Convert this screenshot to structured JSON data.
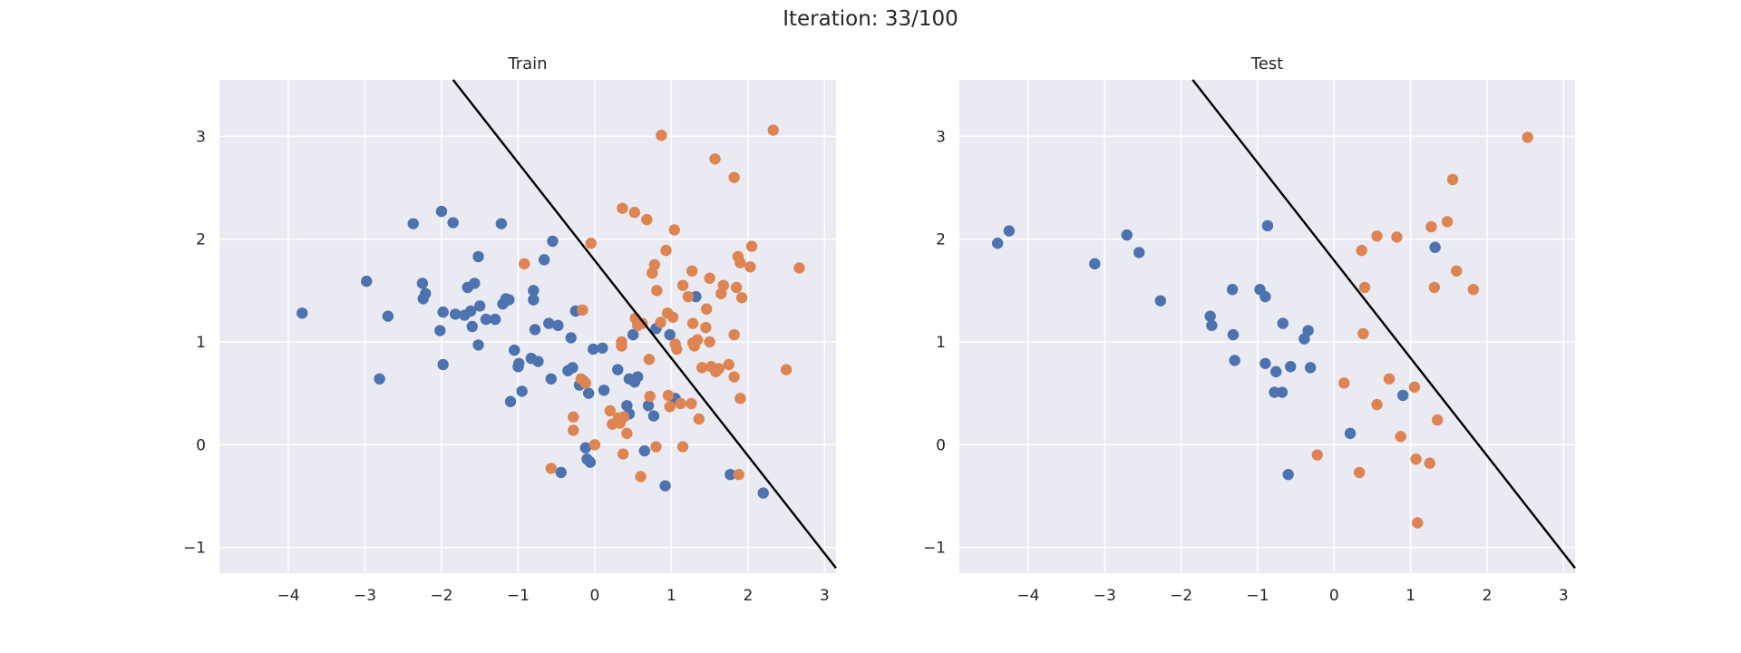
{
  "figure": {
    "title": "Iteration: 33/100"
  },
  "colors": {
    "class0": "#4c72b0",
    "class1": "#dd8452",
    "boundary": "#000000",
    "panel_bg": "#eaeaf2",
    "grid": "#ffffff"
  },
  "chart_data": [
    {
      "type": "scatter",
      "title": "Train",
      "xlim": [
        -4.9,
        3.15
      ],
      "ylim": [
        -1.25,
        3.55
      ],
      "xticks": [
        -4,
        -3,
        -2,
        -1,
        0,
        1,
        2,
        3
      ],
      "yticks": [
        -1,
        0,
        1,
        2,
        3
      ],
      "xlabel": "",
      "ylabel": "",
      "grid": true,
      "boundary": {
        "x": [
          -1.85,
          3.15
        ],
        "y": [
          3.55,
          -1.2
        ]
      },
      "series": [
        {
          "class": 0,
          "points": [
            [
              -3.82,
              1.28
            ],
            [
              -2.98,
              1.59
            ],
            [
              -2.81,
              0.64
            ],
            [
              -2.7,
              1.25
            ],
            [
              -2.37,
              2.15
            ],
            [
              -2.25,
              1.57
            ],
            [
              -2.24,
              1.42
            ],
            [
              -2.21,
              1.47
            ],
            [
              -2.02,
              1.11
            ],
            [
              -2.0,
              2.27
            ],
            [
              -1.98,
              0.78
            ],
            [
              -1.98,
              1.29
            ],
            [
              -1.85,
              2.16
            ],
            [
              -1.82,
              1.27
            ],
            [
              -1.7,
              1.26
            ],
            [
              -1.66,
              1.53
            ],
            [
              -1.62,
              1.3
            ],
            [
              -1.6,
              1.15
            ],
            [
              -1.57,
              1.57
            ],
            [
              -1.52,
              1.83
            ],
            [
              -1.52,
              0.97
            ],
            [
              -1.5,
              1.35
            ],
            [
              -1.42,
              1.22
            ],
            [
              -1.3,
              1.22
            ],
            [
              -1.22,
              2.15
            ],
            [
              -1.2,
              1.37
            ],
            [
              -1.16,
              1.42
            ],
            [
              -1.12,
              1.41
            ],
            [
              -1.1,
              0.42
            ],
            [
              -1.05,
              0.92
            ],
            [
              -1.0,
              0.76
            ],
            [
              -0.99,
              0.79
            ],
            [
              -0.95,
              0.52
            ],
            [
              -0.83,
              0.84
            ],
            [
              -0.8,
              1.5
            ],
            [
              -0.8,
              1.41
            ],
            [
              -0.78,
              1.12
            ],
            [
              -0.74,
              0.81
            ],
            [
              -0.66,
              1.8
            ],
            [
              -0.6,
              1.18
            ],
            [
              -0.57,
              0.64
            ],
            [
              -0.55,
              1.98
            ],
            [
              -0.48,
              1.16
            ],
            [
              -0.44,
              -0.27
            ],
            [
              -0.35,
              0.72
            ],
            [
              -0.31,
              1.04
            ],
            [
              -0.29,
              0.75
            ],
            [
              -0.25,
              1.3
            ],
            [
              -0.2,
              0.58
            ],
            [
              -0.15,
              0.62
            ],
            [
              -0.12,
              -0.03
            ],
            [
              -0.1,
              -0.14
            ],
            [
              -0.08,
              0.5
            ],
            [
              -0.06,
              -0.17
            ],
            [
              -0.02,
              0.93
            ],
            [
              0.1,
              0.94
            ],
            [
              0.12,
              0.53
            ],
            [
              0.3,
              0.73
            ],
            [
              0.42,
              0.38
            ],
            [
              0.45,
              0.64
            ],
            [
              0.45,
              0.3
            ],
            [
              0.5,
              1.07
            ],
            [
              0.52,
              0.61
            ],
            [
              0.56,
              0.66
            ],
            [
              0.65,
              -0.06
            ],
            [
              0.7,
              0.38
            ],
            [
              0.77,
              0.28
            ],
            [
              0.8,
              1.13
            ],
            [
              0.92,
              -0.4
            ],
            [
              0.98,
              1.07
            ],
            [
              1.05,
              0.45
            ],
            [
              1.32,
              1.44
            ],
            [
              1.77,
              -0.29
            ],
            [
              2.2,
              -0.47
            ]
          ]
        },
        {
          "class": 1,
          "points": [
            [
              -0.92,
              1.76
            ],
            [
              -0.28,
              0.27
            ],
            [
              -0.28,
              0.14
            ],
            [
              -0.16,
              1.31
            ],
            [
              -0.18,
              0.64
            ],
            [
              -0.12,
              0.6
            ],
            [
              -0.05,
              1.96
            ],
            [
              0.0,
              0.0
            ],
            [
              -0.57,
              -0.23
            ],
            [
              0.2,
              0.33
            ],
            [
              0.23,
              0.2
            ],
            [
              0.31,
              0.26
            ],
            [
              0.33,
              0.21
            ],
            [
              0.35,
              1.0
            ],
            [
              0.35,
              0.96
            ],
            [
              0.36,
              2.3
            ],
            [
              0.37,
              -0.09
            ],
            [
              0.38,
              0.27
            ],
            [
              0.42,
              0.11
            ],
            [
              0.52,
              2.26
            ],
            [
              0.53,
              1.23
            ],
            [
              0.56,
              1.16
            ],
            [
              0.6,
              -0.31
            ],
            [
              0.62,
              1.18
            ],
            [
              0.68,
              2.19
            ],
            [
              0.71,
              0.83
            ],
            [
              0.72,
              0.47
            ],
            [
              0.75,
              1.67
            ],
            [
              0.78,
              1.75
            ],
            [
              0.8,
              -0.02
            ],
            [
              0.81,
              1.5
            ],
            [
              0.86,
              1.19
            ],
            [
              0.87,
              3.01
            ],
            [
              0.93,
              1.89
            ],
            [
              0.95,
              1.28
            ],
            [
              0.96,
              0.48
            ],
            [
              0.98,
              0.37
            ],
            [
              1.02,
              1.24
            ],
            [
              1.04,
              2.09
            ],
            [
              1.05,
              0.98
            ],
            [
              1.07,
              0.93
            ],
            [
              1.12,
              0.4
            ],
            [
              1.15,
              -0.02
            ],
            [
              1.15,
              1.55
            ],
            [
              1.22,
              1.44
            ],
            [
              1.26,
              0.4
            ],
            [
              1.27,
              1.69
            ],
            [
              1.28,
              0.99
            ],
            [
              1.28,
              1.18
            ],
            [
              1.3,
              0.96
            ],
            [
              1.34,
              1.02
            ],
            [
              1.36,
              0.25
            ],
            [
              1.4,
              0.75
            ],
            [
              1.45,
              1.14
            ],
            [
              1.46,
              1.32
            ],
            [
              1.5,
              1.62
            ],
            [
              1.5,
              1.0
            ],
            [
              1.52,
              0.76
            ],
            [
              1.57,
              2.78
            ],
            [
              1.58,
              0.71
            ],
            [
              1.62,
              0.74
            ],
            [
              1.65,
              1.47
            ],
            [
              1.68,
              1.55
            ],
            [
              1.75,
              0.78
            ],
            [
              1.82,
              2.6
            ],
            [
              1.82,
              1.07
            ],
            [
              1.82,
              0.66
            ],
            [
              1.85,
              1.53
            ],
            [
              1.87,
              1.83
            ],
            [
              1.88,
              -0.29
            ],
            [
              1.9,
              0.45
            ],
            [
              1.9,
              1.77
            ],
            [
              1.92,
              1.43
            ],
            [
              2.03,
              1.73
            ],
            [
              2.05,
              1.93
            ],
            [
              2.33,
              3.06
            ],
            [
              2.5,
              0.73
            ],
            [
              2.67,
              1.72
            ]
          ]
        }
      ]
    },
    {
      "type": "scatter",
      "title": "Test",
      "xlim": [
        -4.9,
        3.15
      ],
      "ylim": [
        -1.25,
        3.55
      ],
      "xticks": [
        -4,
        -3,
        -2,
        -1,
        0,
        1,
        2,
        3
      ],
      "yticks": [
        -1,
        0,
        1,
        2,
        3
      ],
      "xlabel": "",
      "ylabel": "",
      "grid": true,
      "boundary": {
        "x": [
          -1.85,
          3.15
        ],
        "y": [
          3.55,
          -1.2
        ]
      },
      "series": [
        {
          "class": 0,
          "points": [
            [
              -4.4,
              1.96
            ],
            [
              -4.25,
              2.08
            ],
            [
              -3.13,
              1.76
            ],
            [
              -2.71,
              2.04
            ],
            [
              -2.55,
              1.87
            ],
            [
              -2.27,
              1.4
            ],
            [
              -1.62,
              1.25
            ],
            [
              -1.6,
              1.16
            ],
            [
              -1.32,
              1.07
            ],
            [
              -1.3,
              0.82
            ],
            [
              -1.33,
              1.51
            ],
            [
              -0.97,
              1.51
            ],
            [
              -0.9,
              1.44
            ],
            [
              -0.9,
              0.79
            ],
            [
              -0.87,
              2.13
            ],
            [
              -0.78,
              0.51
            ],
            [
              -0.76,
              0.71
            ],
            [
              -0.68,
              0.51
            ],
            [
              -0.67,
              1.18
            ],
            [
              -0.6,
              -0.29
            ],
            [
              -0.57,
              0.76
            ],
            [
              -0.39,
              1.03
            ],
            [
              -0.34,
              1.11
            ],
            [
              -0.31,
              0.75
            ],
            [
              0.21,
              0.11
            ],
            [
              0.9,
              0.48
            ],
            [
              1.32,
              1.92
            ]
          ]
        },
        {
          "class": 1,
          "points": [
            [
              -0.22,
              -0.1
            ],
            [
              0.13,
              0.6
            ],
            [
              0.33,
              -0.27
            ],
            [
              0.36,
              1.89
            ],
            [
              0.38,
              1.08
            ],
            [
              0.4,
              1.53
            ],
            [
              0.56,
              0.39
            ],
            [
              0.56,
              2.03
            ],
            [
              0.72,
              0.64
            ],
            [
              0.82,
              2.02
            ],
            [
              0.87,
              0.08
            ],
            [
              1.05,
              0.56
            ],
            [
              1.07,
              -0.14
            ],
            [
              1.09,
              -0.76
            ],
            [
              1.25,
              -0.18
            ],
            [
              1.27,
              2.12
            ],
            [
              1.31,
              1.53
            ],
            [
              1.35,
              0.24
            ],
            [
              1.48,
              2.17
            ],
            [
              1.55,
              2.58
            ],
            [
              1.6,
              1.69
            ],
            [
              1.82,
              1.51
            ],
            [
              2.53,
              2.99
            ]
          ]
        }
      ]
    }
  ]
}
